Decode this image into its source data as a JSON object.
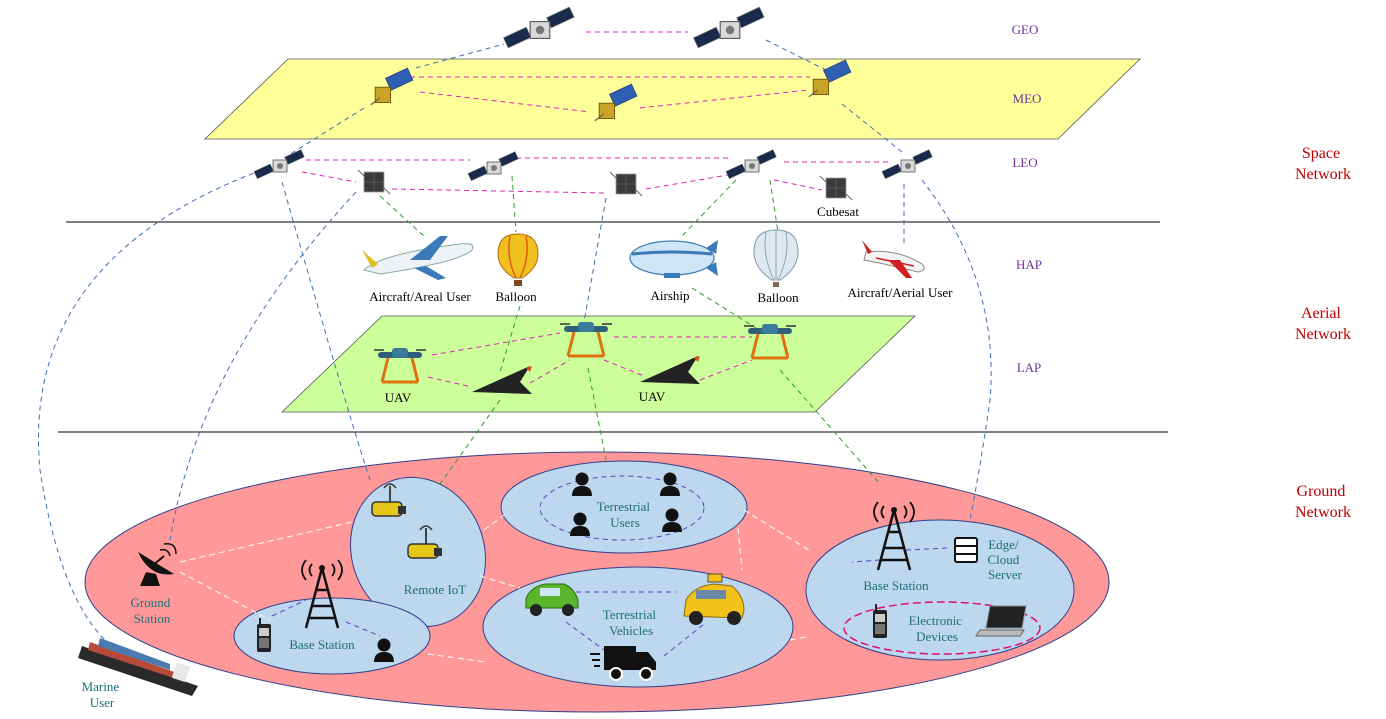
{
  "layers": {
    "geo": "GEO",
    "meo": "MEO",
    "leo": "LEO",
    "hap": "HAP",
    "lap": "LAP"
  },
  "networks": {
    "space": [
      "Space",
      "Network"
    ],
    "aerial": [
      "Aerial",
      "Network"
    ],
    "ground": [
      "Ground",
      "Network"
    ]
  },
  "labels": {
    "cubesat": "Cubesat",
    "aircraft_left": "Aircraft/Areal User",
    "balloon_left": "Balloon",
    "airship": "Airship",
    "balloon_right": "Balloon",
    "aircraft_right": "Aircraft/Aerial User",
    "uav_left": "UAV",
    "uav_right": "UAV",
    "ground_station": [
      "Ground",
      "Station"
    ],
    "marine_user": [
      "Marine",
      "User"
    ],
    "remote_iot": "Remote IoT",
    "terrestrial_users": [
      "Terrestrial",
      "Users"
    ],
    "base_station_left": "Base Station",
    "terrestrial_vehicles": [
      "Terrestrial",
      "Vehicles"
    ],
    "base_station_right": "Base Station",
    "edge_cloud": [
      "Edge/",
      "Cloud",
      "Server"
    ],
    "electronic_devices": [
      "Electronic",
      "Devices"
    ]
  },
  "colors": {
    "meo_plane": "#ffff99",
    "lap_plane": "#ccff99",
    "ground_ellipse": "#ff9999",
    "cell": "#bdd7ee",
    "network_label": "#c00000",
    "layer_label": "#7030a0",
    "ground_label": "#1a6f7a"
  }
}
